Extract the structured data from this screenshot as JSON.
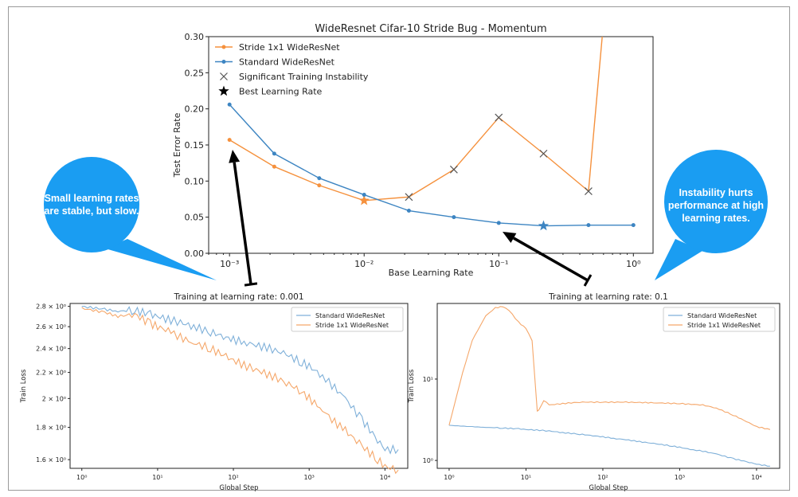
{
  "chart_data": [
    {
      "type": "line",
      "title": "WideResnet Cifar-10 Stride Bug - Momentum",
      "xlabel": "Base Learning Rate",
      "ylabel": "Test Error Rate",
      "xscale": "log",
      "xlim": [
        0.0007,
        1.4
      ],
      "ylim": [
        0,
        0.3
      ],
      "yticks": [
        "0.00",
        "0.05",
        "0.10",
        "0.15",
        "0.20",
        "0.25",
        "0.30"
      ],
      "xticks": [
        "10⁻³",
        "10⁻²",
        "10⁻¹",
        "10⁰"
      ],
      "grid": false,
      "legend_position": "upper-left",
      "legend": [
        {
          "label": "Stride 1x1 WideResNet",
          "marker": "dot-line",
          "color": "#f5913d"
        },
        {
          "label": "Standard WideResNet",
          "marker": "dot-line",
          "color": "#3d85c2"
        },
        {
          "label": "Significant Training Instability",
          "marker": "x",
          "color": "#555555"
        },
        {
          "label": "Best Learning Rate",
          "marker": "star",
          "color": "#000000"
        }
      ],
      "series": [
        {
          "name": "Stride 1x1 WideResNet",
          "color": "#f5913d",
          "x": [
            0.001,
            0.00215,
            0.00464,
            0.01,
            0.0215,
            0.0464,
            0.1,
            0.215,
            0.464,
            0.6
          ],
          "y": [
            0.157,
            0.12,
            0.094,
            0.073,
            0.078,
            0.116,
            0.188,
            0.138,
            0.086,
            0.32
          ],
          "instability_x": [
            0.0215,
            0.0464,
            0.1,
            0.215,
            0.464
          ],
          "best_x": 0.01
        },
        {
          "name": "Standard WideResNet",
          "color": "#3d85c2",
          "x": [
            0.001,
            0.00215,
            0.00464,
            0.01,
            0.0215,
            0.0464,
            0.1,
            0.215,
            0.464,
            1.0
          ],
          "y": [
            0.206,
            0.138,
            0.104,
            0.081,
            0.059,
            0.05,
            0.042,
            0.038,
            0.039,
            0.039
          ],
          "best_x": 0.215
        }
      ]
    },
    {
      "type": "line",
      "title": "Training at learning rate: 0.001",
      "xlabel": "Global Step",
      "ylabel": "Train Loss",
      "xscale": "log",
      "yscale": "log",
      "xlim": [
        0.7,
        20000
      ],
      "ylim": [
        1.55,
        2.83
      ],
      "yticks": [
        "1.6 × 10⁰",
        "1.8 × 10⁰",
        "2 × 10⁰",
        "2.2 × 10⁰",
        "2.4 × 10⁰",
        "2.6 × 10⁰",
        "2.8 × 10⁰"
      ],
      "xticks": [
        "10⁰",
        "10¹",
        "10²",
        "10³",
        "10⁴"
      ],
      "legend_position": "upper-right",
      "series": [
        {
          "name": "Standard WideResNet",
          "color": "#7fb0d9",
          "x": [
            1,
            2,
            3,
            5,
            8,
            10,
            15,
            20,
            30,
            50,
            80,
            100,
            150,
            200,
            300,
            500,
            800,
            1000,
            1500,
            2000,
            3000,
            5000,
            8000,
            10000,
            15000
          ],
          "y": [
            2.8,
            2.77,
            2.75,
            2.76,
            2.72,
            2.7,
            2.66,
            2.64,
            2.6,
            2.55,
            2.5,
            2.48,
            2.45,
            2.43,
            2.4,
            2.35,
            2.28,
            2.25,
            2.17,
            2.1,
            2.0,
            1.85,
            1.72,
            1.66,
            1.66
          ]
        },
        {
          "name": "Stride 1x1 WideResNet",
          "color": "#f5a76a",
          "x": [
            1,
            2,
            3,
            5,
            8,
            10,
            15,
            20,
            30,
            50,
            80,
            100,
            150,
            200,
            300,
            500,
            800,
            1000,
            1500,
            2000,
            3000,
            5000,
            8000,
            10000,
            15000
          ],
          "y": [
            2.78,
            2.74,
            2.7,
            2.72,
            2.63,
            2.6,
            2.55,
            2.5,
            2.45,
            2.4,
            2.33,
            2.3,
            2.25,
            2.22,
            2.18,
            2.12,
            2.05,
            2.0,
            1.92,
            1.85,
            1.78,
            1.68,
            1.6,
            1.56,
            1.54
          ]
        }
      ]
    },
    {
      "type": "line",
      "title": "Training at learning rate: 0.1",
      "xlabel": "Global Step",
      "ylabel": "Train Loss",
      "xscale": "log",
      "yscale": "log",
      "xlim": [
        0.7,
        20000
      ],
      "ylim": [
        0.8,
        85
      ],
      "yticks": [
        "10⁰",
        "10¹"
      ],
      "xticks": [
        "10⁰",
        "10¹",
        "10²",
        "10³",
        "10⁴"
      ],
      "legend_position": "upper-right",
      "series": [
        {
          "name": "Standard WideResNet",
          "color": "#7fb0d9",
          "x": [
            1,
            2,
            3,
            5,
            8,
            10,
            15,
            20,
            30,
            50,
            80,
            100,
            150,
            200,
            300,
            500,
            800,
            1000,
            1500,
            2000,
            3000,
            5000,
            8000,
            10000,
            15000
          ],
          "y": [
            2.7,
            2.6,
            2.55,
            2.5,
            2.45,
            2.4,
            2.35,
            2.3,
            2.2,
            2.1,
            2.0,
            1.95,
            1.85,
            1.8,
            1.7,
            1.6,
            1.5,
            1.45,
            1.35,
            1.3,
            1.2,
            1.05,
            0.95,
            0.9,
            0.85
          ]
        },
        {
          "name": "Stride 1x1 WideResNet",
          "color": "#f5a76a",
          "x": [
            1,
            1.5,
            2,
            3,
            4,
            5,
            6,
            8,
            10,
            12,
            14,
            15,
            17,
            20,
            30,
            50,
            100,
            200,
            500,
            1000,
            2000,
            3000,
            5000,
            8000,
            10000,
            15000
          ],
          "y": [
            2.7,
            12,
            30,
            60,
            75,
            78,
            70,
            50,
            42,
            30,
            4.0,
            4.3,
            5.5,
            4.8,
            5.0,
            5.2,
            5.2,
            5.2,
            5.1,
            5.0,
            4.8,
            4.4,
            3.6,
            2.9,
            2.6,
            2.4
          ]
        }
      ]
    }
  ],
  "bubbles": [
    {
      "text": [
        "Small learning rates",
        "are stable, but slow."
      ],
      "color": "#1a9df2"
    },
    {
      "text": [
        "Instability hurts",
        "performance at high",
        "learning rates."
      ],
      "color": "#1a9df2"
    }
  ]
}
